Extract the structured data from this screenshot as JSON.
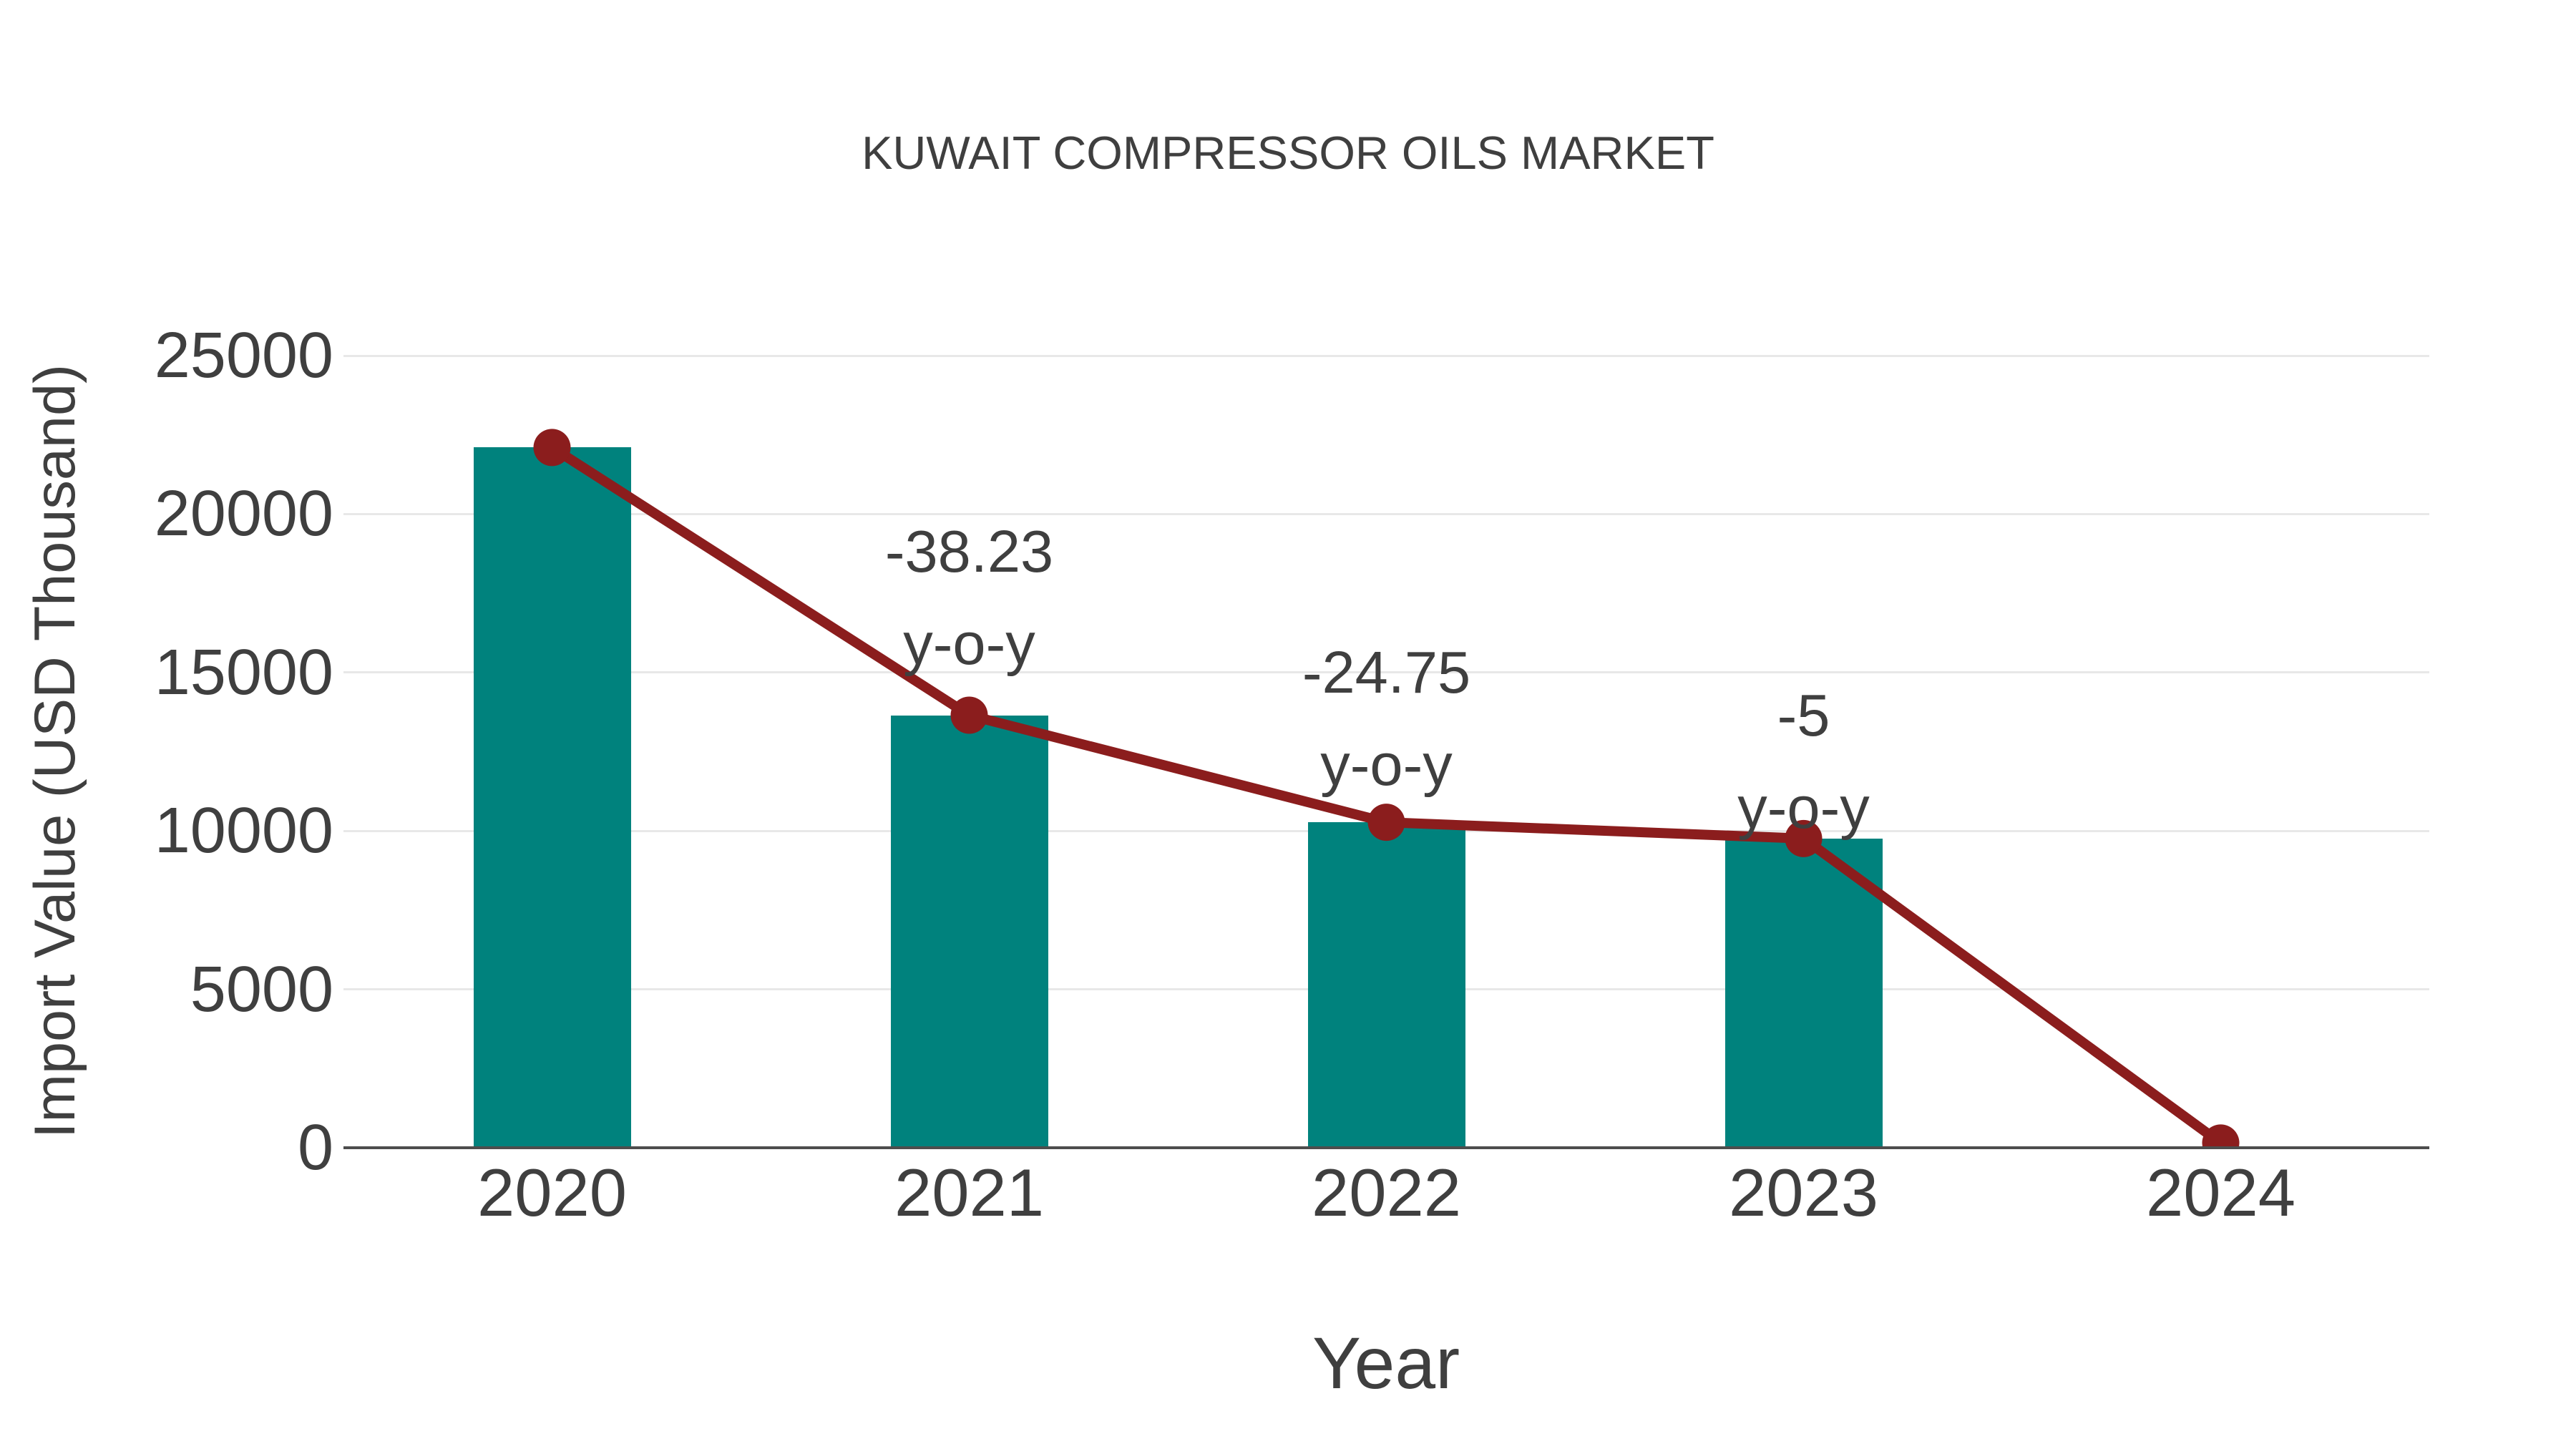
{
  "title": "KUWAIT COMPRESSOR OILS MARKET",
  "x_axis_label": "Year",
  "y_axis_label": "Import Value (USD Thousand)",
  "colors": {
    "bar": "#00827D",
    "line": "#8B1D1D",
    "marker": "#8B1D1D",
    "grid": "#E8E8E8",
    "axis": "#4D4D4D",
    "text": "#3F3F3F",
    "background": "#FFFFFF"
  },
  "chart_data": {
    "type": "bar",
    "subtype": "bar-with-line-overlay",
    "title": "KUWAIT COMPRESSOR OILS MARKET",
    "xlabel": "Year",
    "ylabel": "Import Value (USD Thousand)",
    "categories": [
      "2020",
      "2021",
      "2022",
      "2023",
      "2024"
    ],
    "series": [
      {
        "name": "Import Value bars",
        "type": "bar",
        "values": [
          22100,
          13651,
          10272,
          9759,
          null
        ]
      },
      {
        "name": "Import Value trend line",
        "type": "line",
        "values": [
          22100,
          13651,
          10272,
          9759,
          150
        ]
      }
    ],
    "annotations": [
      {
        "category": "2021",
        "line1": "-38.23",
        "line2": "y-o-y"
      },
      {
        "category": "2022",
        "line1": "-24.75",
        "line2": "y-o-y"
      },
      {
        "category": "2023",
        "line1": "-5",
        "line2": "y-o-y"
      }
    ],
    "ylim": [
      0,
      25000
    ],
    "yticks": [
      0,
      5000,
      10000,
      15000,
      20000,
      25000
    ],
    "grid": "horizontal-light",
    "legend": "none"
  }
}
